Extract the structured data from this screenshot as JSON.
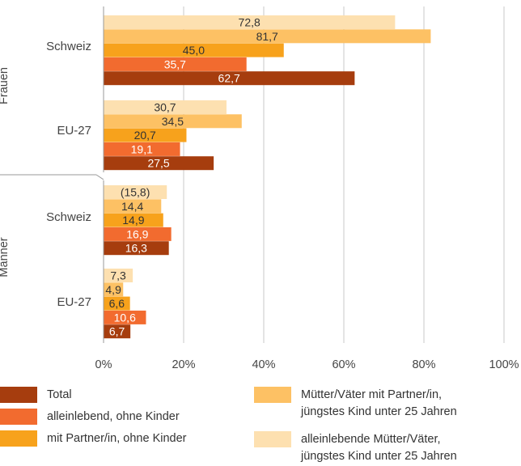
{
  "chart_data": {
    "type": "bar",
    "orientation": "horizontal",
    "title": "",
    "xlabel": "",
    "ylabel": "",
    "xlim": [
      0,
      100
    ],
    "x_ticks": [
      "0%",
      "20%",
      "40%",
      "60%",
      "80%",
      "100%"
    ],
    "grid": true,
    "legend_position": "bottom",
    "groups": [
      {
        "name": "Frauen",
        "categories": [
          {
            "name": "Schweiz",
            "labels": [
              "72,8",
              "81,7",
              "45,0",
              "35,7",
              "62,7"
            ],
            "values": [
              72.8,
              81.7,
              45.0,
              35.7,
              62.7
            ]
          },
          {
            "name": "EU-27",
            "labels": [
              "30,7",
              "34,5",
              "20,7",
              "19,1",
              "27,5"
            ],
            "values": [
              30.7,
              34.5,
              20.7,
              19.1,
              27.5
            ]
          }
        ]
      },
      {
        "name": "Männer",
        "categories": [
          {
            "name": "Schweiz",
            "labels": [
              "(15,8)",
              "14,4",
              "14,9",
              "16,9",
              "16,3"
            ],
            "values": [
              15.8,
              14.4,
              14.9,
              16.9,
              16.3
            ]
          },
          {
            "name": "EU-27",
            "labels": [
              "7,3",
              "4,9",
              "6,6",
              "10,6",
              "6,7"
            ],
            "values": [
              7.3,
              4.9,
              6.6,
              10.6,
              6.7
            ]
          }
        ]
      }
    ],
    "series": [
      {
        "name": "alleinlebende Mütter/Väter, jüngstes Kind unter 25 Jahren",
        "color": "#fde0b0",
        "label_color": "#333333"
      },
      {
        "name": "Mütter/Väter mit Partner/in, jüngstes Kind unter 25 Jahren",
        "color": "#fdc164",
        "label_color": "#333333"
      },
      {
        "name": "mit Partner/in, ohne Kinder",
        "color": "#f7a21c",
        "label_color": "#333333"
      },
      {
        "name": "alleinlebend, ohne Kinder",
        "color": "#f26b2f",
        "label_color": "#ffffff"
      },
      {
        "name": "Total",
        "color": "#a63d0e",
        "label_color": "#ffffff"
      }
    ]
  },
  "legend": {
    "total": "Total",
    "alleinlebend": "alleinlebend, ohne Kinder",
    "mit_partner": "mit Partner/in, ohne Kinder",
    "eltern_partner_line1": "Mütter/Väter mit Partner/in,",
    "eltern_partner_line2": "jüngstes Kind unter 25 Jahren",
    "alleinlebende_eltern_line1": "alleinlebende Mütter/Väter,",
    "alleinlebende_eltern_line2": "jüngstes Kind unter 25 Jahren"
  }
}
